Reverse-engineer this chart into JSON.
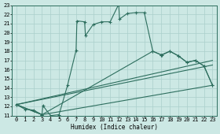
{
  "xlabel": "Humidex (Indice chaleur)",
  "xlim": [
    -0.5,
    23.5
  ],
  "ylim": [
    11,
    23
  ],
  "xticks": [
    0,
    1,
    2,
    3,
    4,
    5,
    6,
    7,
    8,
    9,
    10,
    11,
    12,
    13,
    14,
    15,
    16,
    17,
    18,
    19,
    20,
    21,
    22,
    23
  ],
  "yticks": [
    11,
    12,
    13,
    14,
    15,
    16,
    17,
    18,
    19,
    20,
    21,
    22,
    23
  ],
  "background_color": "#cce8e4",
  "grid_color": "#aacfcb",
  "line_color": "#2d6e5e",
  "line1_x": [
    0,
    1,
    2,
    3,
    3.1,
    4,
    5,
    6,
    7,
    7.1,
    8,
    8.1,
    9,
    10,
    11,
    12,
    12.1,
    13,
    14,
    15,
    16,
    17,
    17.1,
    18,
    19,
    20,
    21,
    22,
    23
  ],
  "line1_y": [
    12.2,
    11.7,
    11.6,
    11.1,
    12.1,
    11.0,
    11.1,
    14.3,
    18.1,
    21.3,
    21.2,
    19.7,
    20.9,
    21.2,
    21.2,
    23.1,
    21.5,
    22.1,
    22.2,
    22.2,
    18.0,
    17.6,
    17.6,
    18.0,
    17.5,
    16.8,
    17.0,
    16.4,
    14.3
  ],
  "line2_x": [
    0,
    3,
    23
  ],
  "line2_y": [
    12.2,
    11.1,
    14.3
  ],
  "line3_x": [
    0,
    23
  ],
  "line3_y": [
    12.2,
    17.0
  ],
  "line4_x": [
    0,
    23
  ],
  "line4_y": [
    12.2,
    16.5
  ],
  "line5_x": [
    0,
    3,
    16,
    17,
    18,
    19,
    20,
    21,
    22,
    23
  ],
  "line5_y": [
    12.2,
    11.1,
    18.0,
    17.6,
    18.0,
    17.5,
    16.8,
    17.0,
    16.4,
    14.3
  ]
}
